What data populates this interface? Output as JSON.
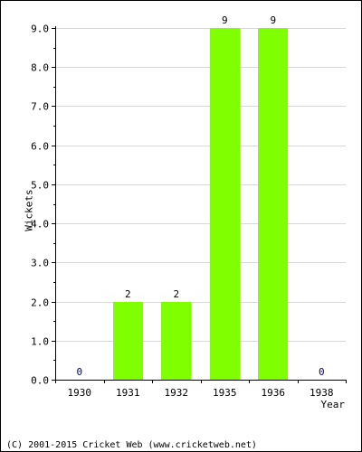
{
  "chart_data": {
    "type": "bar",
    "categories": [
      "1930",
      "1931",
      "1932",
      "1935",
      "1936",
      "1938"
    ],
    "values": [
      0,
      2,
      2,
      9,
      9,
      0
    ],
    "data_labels": [
      "0",
      "2",
      "2",
      "9",
      "9",
      "0"
    ],
    "ylabel": "Wickets",
    "xlabel": "Year",
    "ylim": [
      0,
      9
    ],
    "yticks": [
      "0.0",
      "1.0",
      "2.0",
      "3.0",
      "4.0",
      "5.0",
      "6.0",
      "7.0",
      "8.0",
      "9.0"
    ],
    "grid": true,
    "bar_color": "#80ff00",
    "zero_label_color": "#000080"
  },
  "footer": {
    "credit": "(C) 2001-2015 Cricket Web (www.cricketweb.net)"
  }
}
